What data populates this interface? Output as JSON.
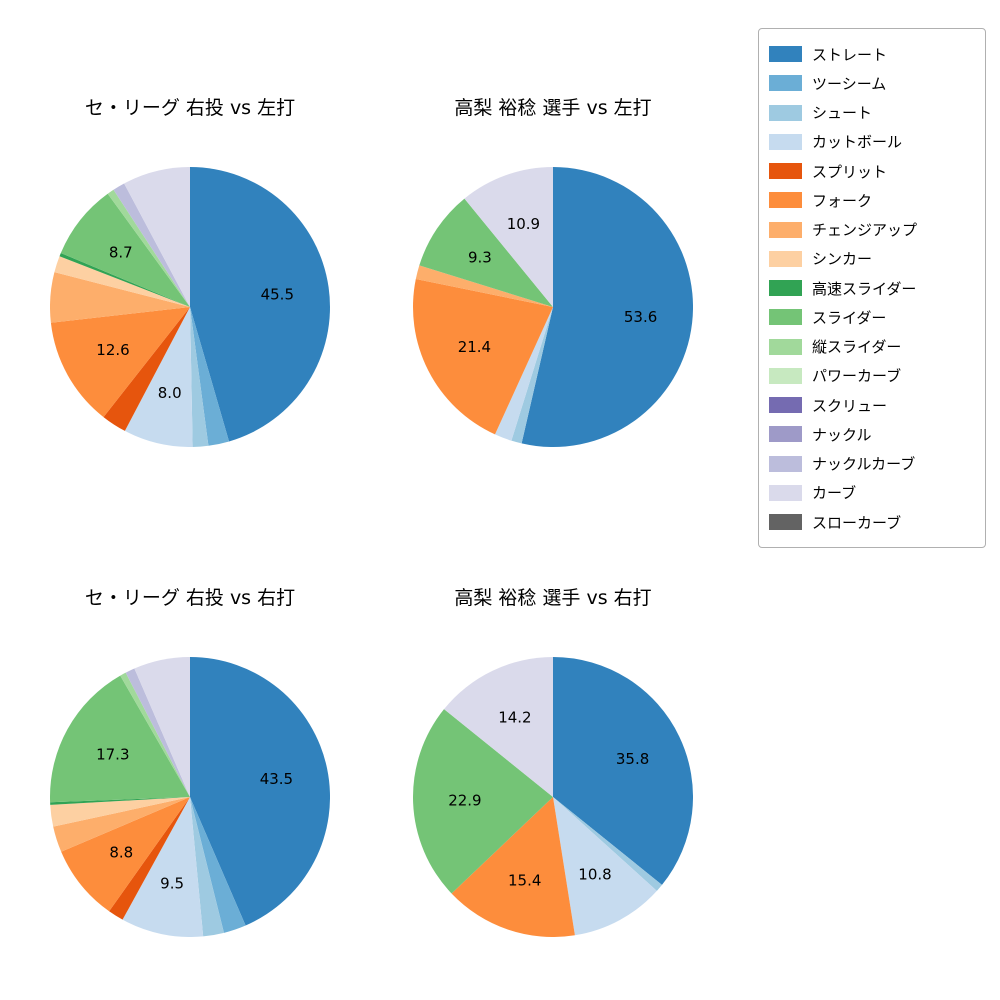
{
  "figure": {
    "background": "#ffffff"
  },
  "palette": {
    "ストレート": "#3182bd",
    "ツーシーム": "#6baed6",
    "シュート": "#9ecae1",
    "カットボール": "#c6dbef",
    "スプリット": "#e6550d",
    "フォーク": "#fd8d3c",
    "チェンジアップ": "#fdae6b",
    "シンカー": "#fdd0a2",
    "高速スライダー": "#31a354",
    "スライダー": "#74c476",
    "縦スライダー": "#a1d99b",
    "パワーカーブ": "#c7e9c0",
    "スクリュー": "#756bb1",
    "ナックル": "#9e9ac8",
    "ナックルカーブ": "#bcbddc",
    "カーブ": "#dadaeb",
    "スローカーブ": "#636363"
  },
  "legend": {
    "position": "right",
    "items": [
      "ストレート",
      "ツーシーム",
      "シュート",
      "カットボール",
      "スプリット",
      "フォーク",
      "チェンジアップ",
      "シンカー",
      "高速スライダー",
      "スライダー",
      "縦スライダー",
      "パワーカーブ",
      "スクリュー",
      "ナックル",
      "ナックルカーブ",
      "カーブ",
      "スローカーブ"
    ]
  },
  "chart_data": [
    {
      "type": "pie",
      "title": "セ・リーグ 右投 vs 左打",
      "start_angle_deg": 0,
      "direction": "clockwise",
      "label_min_value": 8.0,
      "labeled_values": [
        45.5,
        8.0,
        12.6,
        8.7
      ],
      "slices": [
        {
          "label": "ストレート",
          "value": 45.5
        },
        {
          "label": "ツーシーム",
          "value": 2.4
        },
        {
          "label": "シュート",
          "value": 1.8
        },
        {
          "label": "カットボール",
          "value": 8.0
        },
        {
          "label": "スプリット",
          "value": 2.9
        },
        {
          "label": "フォーク",
          "value": 12.6
        },
        {
          "label": "チェンジアップ",
          "value": 5.8
        },
        {
          "label": "シンカー",
          "value": 1.9
        },
        {
          "label": "高速スライダー",
          "value": 0.4
        },
        {
          "label": "スライダー",
          "value": 8.7
        },
        {
          "label": "縦スライダー",
          "value": 0.8
        },
        {
          "label": "ナックルカーブ",
          "value": 1.4
        },
        {
          "label": "カーブ",
          "value": 7.8
        }
      ]
    },
    {
      "type": "pie",
      "title": "高梨 裕稔 選手 vs 左打",
      "start_angle_deg": 0,
      "direction": "clockwise",
      "label_min_value": 8.0,
      "labeled_values": [
        53.6,
        21.4,
        9.3,
        10.9
      ],
      "slices": [
        {
          "label": "ストレート",
          "value": 53.6
        },
        {
          "label": "シュート",
          "value": 1.2
        },
        {
          "label": "カットボール",
          "value": 2.0
        },
        {
          "label": "フォーク",
          "value": 21.4
        },
        {
          "label": "チェンジアップ",
          "value": 1.6
        },
        {
          "label": "スライダー",
          "value": 9.3
        },
        {
          "label": "カーブ",
          "value": 10.9
        }
      ]
    },
    {
      "type": "pie",
      "title": "セ・リーグ 右投 vs 右打",
      "start_angle_deg": 0,
      "direction": "clockwise",
      "label_min_value": 8.0,
      "labeled_values": [
        43.5,
        9.5,
        8.8,
        17.3
      ],
      "slices": [
        {
          "label": "ストレート",
          "value": 43.5
        },
        {
          "label": "ツーシーム",
          "value": 2.6
        },
        {
          "label": "シュート",
          "value": 2.4
        },
        {
          "label": "カットボール",
          "value": 9.5
        },
        {
          "label": "スプリット",
          "value": 1.8
        },
        {
          "label": "フォーク",
          "value": 8.8
        },
        {
          "label": "チェンジアップ",
          "value": 3.0
        },
        {
          "label": "シンカー",
          "value": 2.5
        },
        {
          "label": "高速スライダー",
          "value": 0.3
        },
        {
          "label": "スライダー",
          "value": 17.3
        },
        {
          "label": "縦スライダー",
          "value": 0.7
        },
        {
          "label": "ナックルカーブ",
          "value": 1.1
        },
        {
          "label": "カーブ",
          "value": 6.5
        }
      ]
    },
    {
      "type": "pie",
      "title": "高梨 裕稔 選手 vs 右打",
      "start_angle_deg": 0,
      "direction": "clockwise",
      "label_min_value": 8.0,
      "labeled_values": [
        35.8,
        10.8,
        15.4,
        22.9,
        14.2
      ],
      "slices": [
        {
          "label": "ストレート",
          "value": 35.8
        },
        {
          "label": "シュート",
          "value": 0.9
        },
        {
          "label": "カットボール",
          "value": 10.8
        },
        {
          "label": "フォーク",
          "value": 15.4
        },
        {
          "label": "スライダー",
          "value": 22.9
        },
        {
          "label": "カーブ",
          "value": 14.2
        }
      ]
    }
  ]
}
